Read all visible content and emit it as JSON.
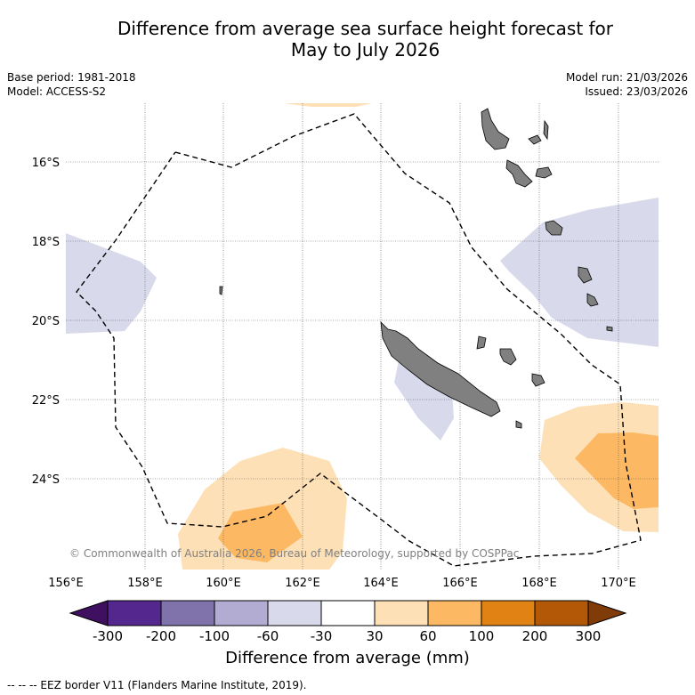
{
  "title_line1": "Difference from average sea surface height forecast for",
  "title_line2": "May to July 2026",
  "meta_left": {
    "base_period": "Base period: 1981-2018",
    "model": "Model: ACCESS-S2"
  },
  "meta_right": {
    "model_run": "Model run: 21/03/2026",
    "issued": "Issued: 23/03/2026"
  },
  "lat_labels": [
    "16°S",
    "18°S",
    "20°S",
    "22°S",
    "24°S"
  ],
  "lon_labels": [
    "156°E",
    "158°E",
    "160°E",
    "162°E",
    "164°E",
    "166°E",
    "168°E",
    "170°E"
  ],
  "copyright": "© Commonwealth of Australia 2026, Bureau of Meteorology, supported by COSPPac",
  "colorbar": {
    "title": "Difference from average (mm)",
    "tick_labels": [
      "-300",
      "-200",
      "-100",
      "-60",
      "-30",
      "30",
      "60",
      "100",
      "200",
      "300"
    ],
    "colors": [
      "#3f0f60",
      "#54278f",
      "#8073ac",
      "#b2abd2",
      "#d8daeb",
      "#ffffff",
      "#fee0b6",
      "#fdb863",
      "#e08214",
      "#b35806",
      "#7f3b08"
    ]
  },
  "footnote": "--  --  -- EEZ border V11 (Flanders Marine Institute, 2019)."
}
